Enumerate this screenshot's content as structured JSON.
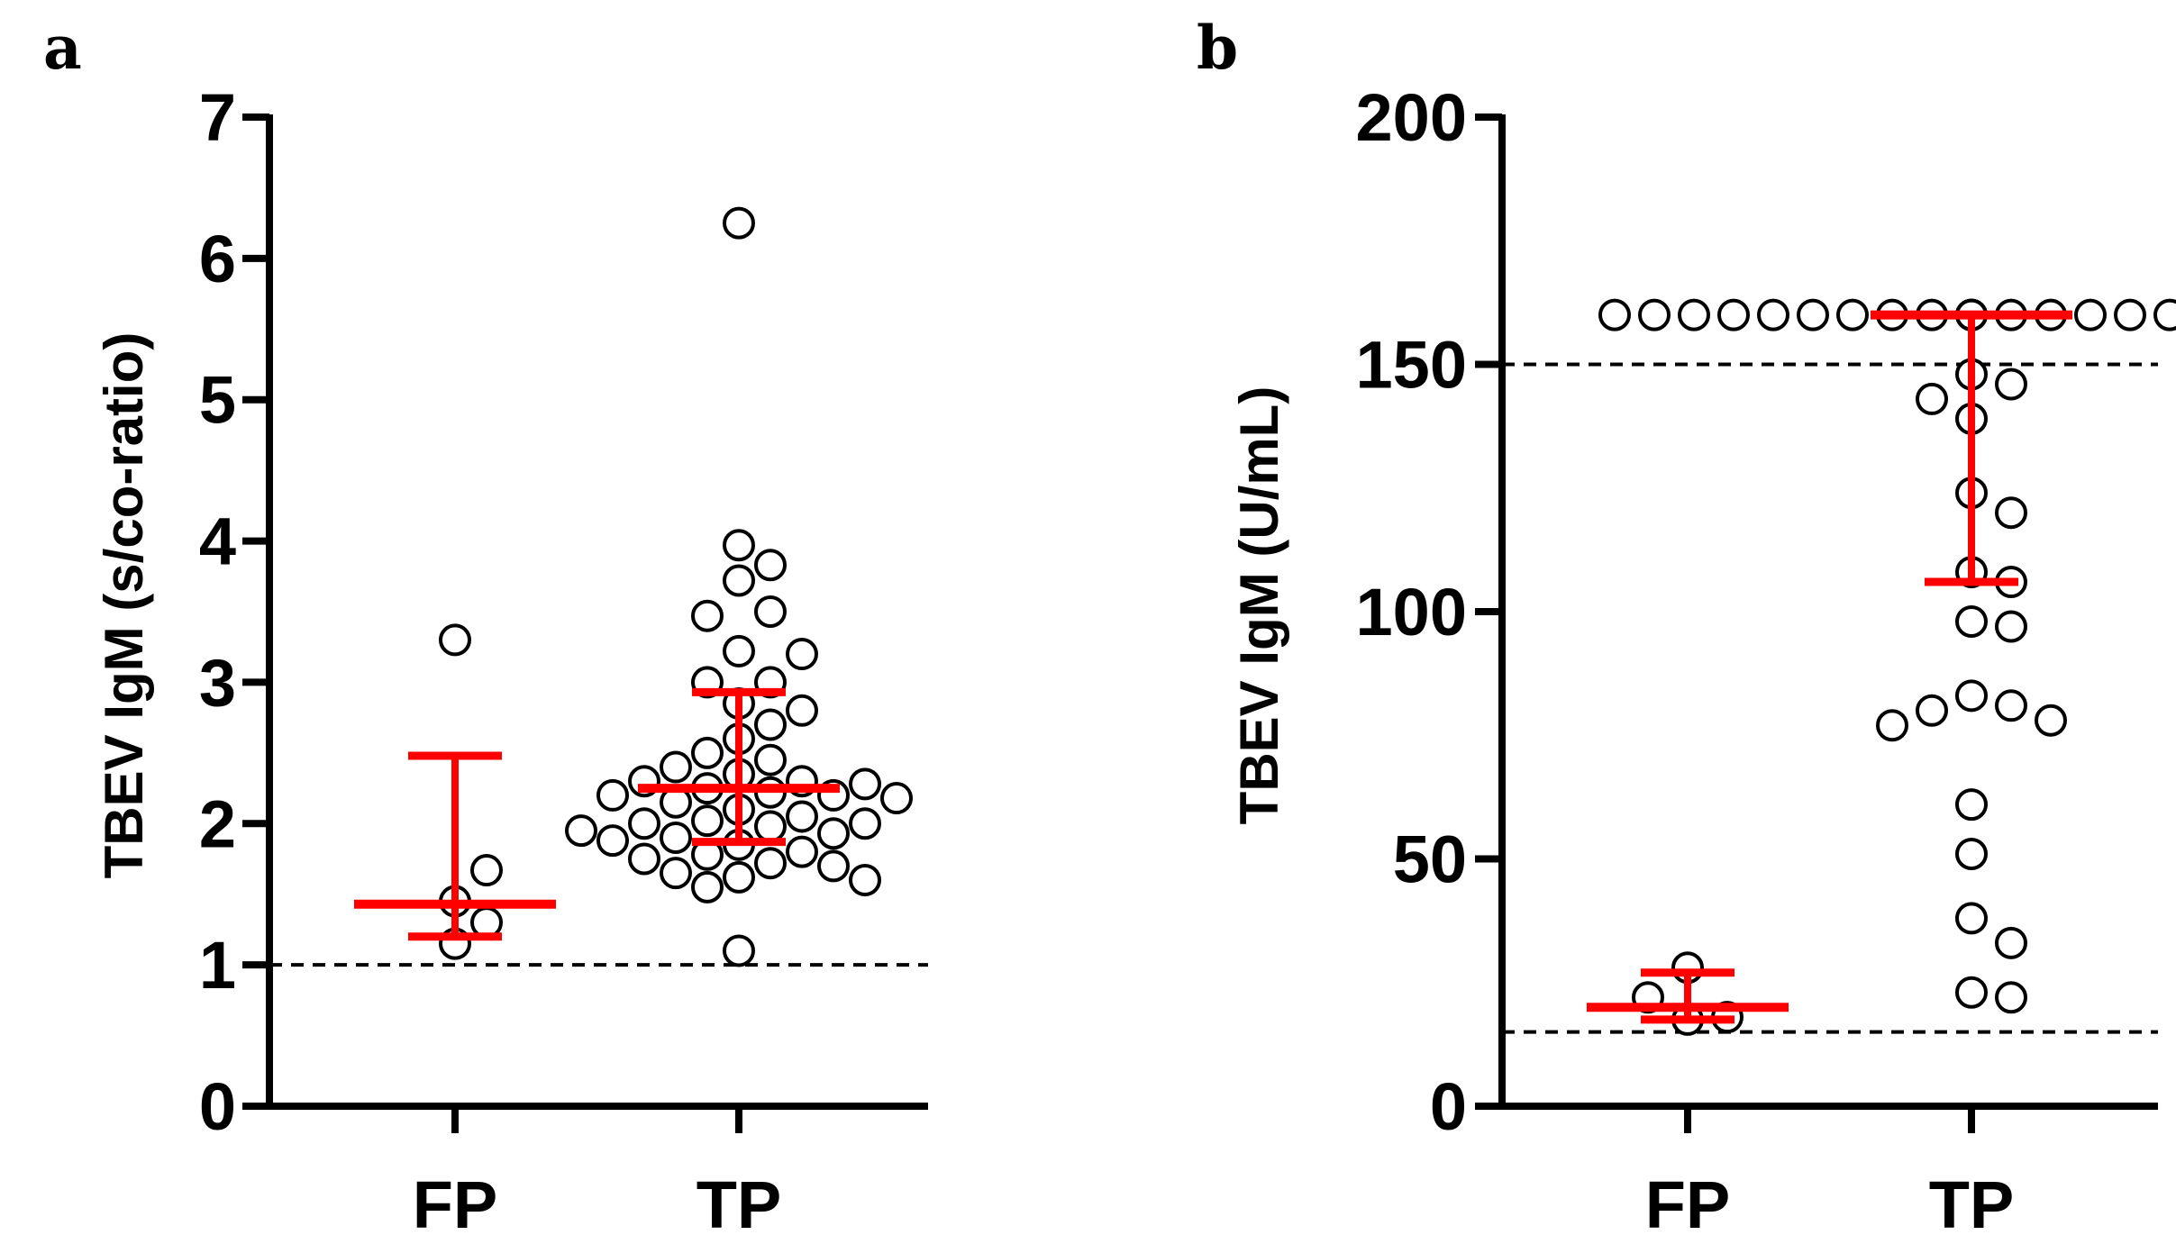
{
  "chart_data": [
    {
      "panel": "a",
      "type": "scatter",
      "ylabel": "TBEV IgM (s/co-ratio)",
      "ylim": [
        0,
        7
      ],
      "yticks": [
        "0",
        "1",
        "2",
        "3",
        "4",
        "5",
        "6",
        "7"
      ],
      "categories": [
        "FP",
        "TP"
      ],
      "reference_lines": [
        1
      ],
      "error_bar_color": "#ff0000",
      "groups": [
        {
          "name": "FP",
          "points": [
            1.15,
            1.3,
            1.45,
            1.67,
            3.3
          ],
          "median": 1.43,
          "lower": 1.2,
          "upper": 2.48
        },
        {
          "name": "TP",
          "points": [
            6.25,
            3.97,
            3.83,
            3.72,
            3.5,
            3.47,
            3.22,
            3.2,
            3.0,
            3.0,
            2.85,
            2.8,
            2.7,
            2.6,
            2.5,
            2.45,
            2.4,
            2.35,
            2.3,
            2.3,
            2.28,
            2.25,
            2.22,
            2.2,
            2.2,
            2.18,
            2.15,
            2.1,
            2.05,
            2.02,
            2.0,
            2.0,
            1.98,
            1.95,
            1.93,
            1.9,
            1.88,
            1.85,
            1.8,
            1.78,
            1.75,
            1.72,
            1.7,
            1.65,
            1.62,
            1.6,
            1.55,
            1.1
          ],
          "median": 2.25,
          "lower": 1.87,
          "upper": 2.93
        }
      ]
    },
    {
      "panel": "b",
      "type": "scatter",
      "ylabel": "TBEV IgM (U/mL)",
      "ylim": [
        0,
        200
      ],
      "yticks": [
        "0",
        "50",
        "100",
        "150",
        "200"
      ],
      "categories": [
        "FP",
        "TP"
      ],
      "reference_lines": [
        15,
        150
      ],
      "error_bar_color": "#ff0000",
      "groups": [
        {
          "name": "FP",
          "points": [
            17.5,
            18,
            22,
            28
          ],
          "median": 20,
          "lower": 17.5,
          "upper": 27
        },
        {
          "name": "TP",
          "points": [
            160,
            160,
            160,
            160,
            160,
            160,
            160,
            160,
            160,
            160,
            160,
            160,
            160,
            160,
            160,
            160,
            160,
            160,
            160,
            160,
            160,
            160,
            160,
            160,
            148,
            146,
            143,
            139,
            124,
            120,
            108,
            106,
            98,
            97,
            83,
            81,
            80,
            78,
            77,
            61,
            51,
            38,
            33,
            23,
            22
          ],
          "median": 160,
          "lower": 106,
          "upper": 160
        }
      ]
    }
  ]
}
